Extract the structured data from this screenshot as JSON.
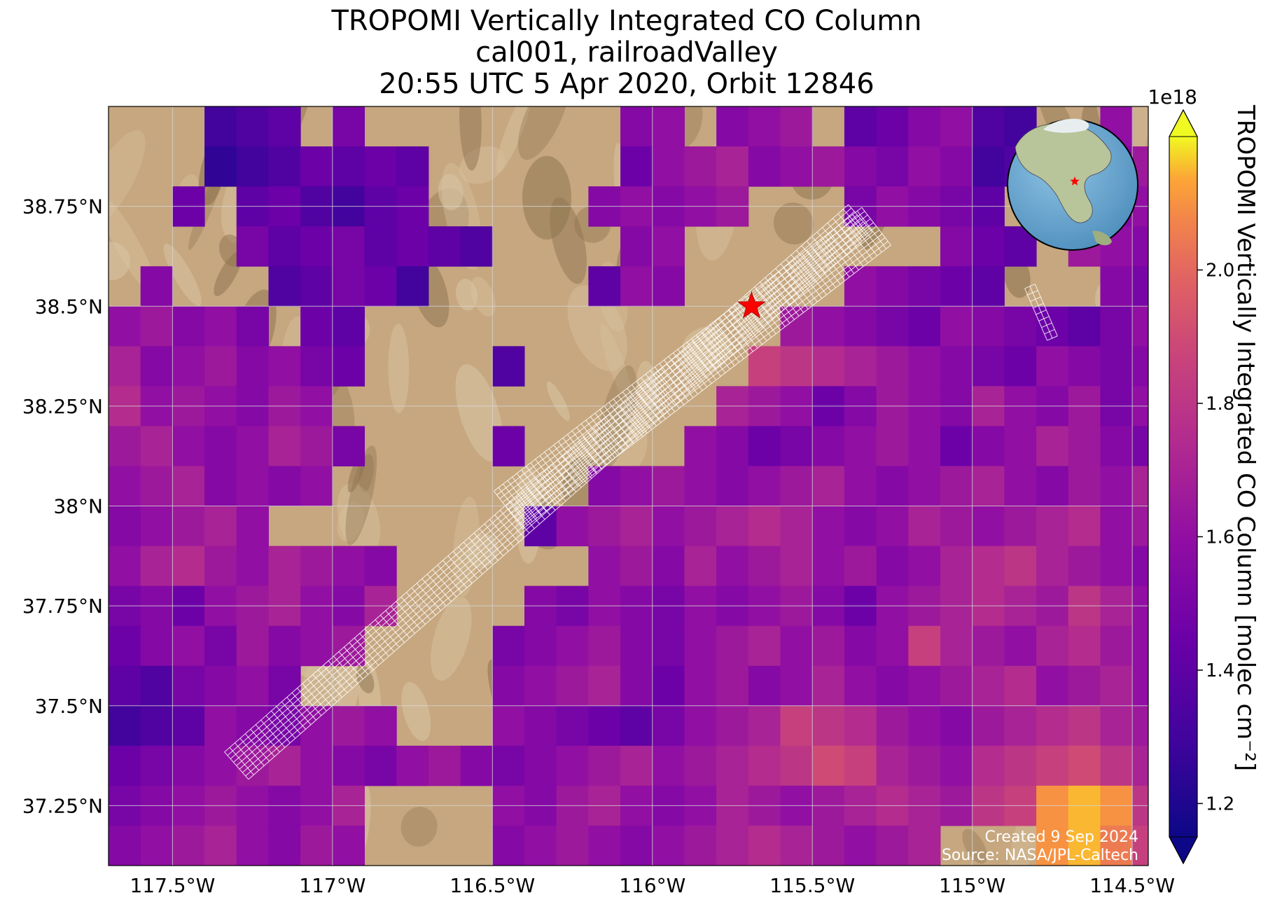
{
  "chart_data": {
    "type": "heatmap",
    "title_lines": [
      "TROPOMI Vertically Integrated CO Column",
      "cal001, railroadValley",
      "20:55 UTC 5 Apr 2020, Orbit 12846"
    ],
    "xlabel": "",
    "ylabel": "",
    "xlim": [
      -117.7,
      -114.45
    ],
    "ylim": [
      37.1,
      39.0
    ],
    "x_ticks": [
      -117.5,
      -117.0,
      -116.5,
      -116.0,
      -115.5,
      -115.0,
      -114.5
    ],
    "x_tick_labels": [
      "117.5°W",
      "117°W",
      "116.5°W",
      "116°W",
      "115.5°W",
      "115°W",
      "114.5°W"
    ],
    "y_ticks": [
      37.25,
      37.5,
      37.75,
      38.0,
      38.25,
      38.5,
      38.75
    ],
    "y_tick_labels": [
      "37.25°N",
      "37.5°N",
      "37.75°N",
      "38°N",
      "38.25°N",
      "38.5°N",
      "38.75°N"
    ],
    "grid": true,
    "colorbar": {
      "label": "TROPOMI Vertically Integrated CO Column [molec cm⁻²]",
      "exponent_label": "1e18",
      "range": [
        1.15,
        2.2
      ],
      "ticks": [
        1.2,
        1.4,
        1.6,
        1.8,
        2.0
      ],
      "tick_labels": [
        "1.2",
        "1.4",
        "1.6",
        "1.8",
        "2.0"
      ],
      "colormap": "plasma",
      "extend": "both"
    },
    "site_marker": {
      "lon": -115.69,
      "lat": 38.5,
      "symbol": "star",
      "color": "#ff0000"
    },
    "cell_size_deg": [
      0.1,
      0.1
    ],
    "cell_columns_lon": [
      -117.7,
      -117.6,
      -117.5,
      -117.4,
      -117.3,
      -117.2,
      -117.1,
      -117.0,
      -116.9,
      -116.8,
      -116.7,
      -116.6,
      -116.5,
      -116.4,
      -116.3,
      -116.2,
      -116.1,
      -116.0,
      -115.9,
      -115.8,
      -115.7,
      -115.6,
      -115.5,
      -115.4,
      -115.3,
      -115.2,
      -115.1,
      -115.0,
      -114.9,
      -114.8,
      -114.7,
      -114.6,
      -114.5
    ],
    "cell_rows_lat": [
      38.9,
      38.8,
      38.7,
      38.6,
      38.5,
      38.4,
      38.3,
      38.2,
      38.1,
      38.0,
      37.9,
      37.8,
      37.7,
      37.6,
      37.5,
      37.4,
      37.3,
      37.2,
      37.1
    ],
    "co_column_1e18": [
      [
        0,
        0,
        0,
        1.3,
        1.35,
        1.4,
        0,
        1.5,
        0,
        0,
        0,
        0,
        0,
        0,
        0,
        0,
        1.55,
        1.6,
        0,
        1.55,
        1.6,
        1.65,
        0,
        1.4,
        1.45,
        1.55,
        1.6,
        1.35,
        1.3,
        0,
        0,
        1.6,
        0
      ],
      [
        0,
        0,
        0,
        1.25,
        1.3,
        1.35,
        1.45,
        1.4,
        1.45,
        1.4,
        0,
        0,
        0,
        0,
        0,
        0,
        1.45,
        1.6,
        1.65,
        1.7,
        1.55,
        1.6,
        1.65,
        1.55,
        1.5,
        1.6,
        1.55,
        1.3,
        1.35,
        0,
        0,
        1.55,
        1.65
      ],
      [
        0,
        0,
        1.45,
        0,
        1.4,
        1.45,
        1.35,
        1.3,
        1.4,
        1.45,
        0,
        0,
        0,
        0,
        0,
        1.55,
        1.6,
        1.55,
        1.6,
        1.65,
        0,
        0,
        0,
        1.5,
        1.6,
        1.55,
        1.5,
        1.4,
        0,
        0,
        1.6,
        1.55,
        1.6
      ],
      [
        0,
        0,
        0,
        0,
        1.5,
        1.4,
        1.45,
        1.5,
        1.4,
        1.45,
        1.4,
        1.35,
        0,
        0,
        0,
        0,
        1.55,
        1.6,
        0,
        0,
        0,
        0,
        0,
        0,
        0,
        0,
        1.55,
        1.45,
        1.4,
        0,
        1.65,
        1.6,
        1.55
      ],
      [
        0,
        1.55,
        0,
        0,
        0,
        1.35,
        1.4,
        1.5,
        1.45,
        1.3,
        0,
        0,
        0,
        0,
        0,
        1.4,
        1.6,
        1.55,
        0,
        0,
        0,
        0,
        0,
        1.6,
        1.55,
        1.5,
        1.45,
        1.4,
        0,
        0,
        0,
        1.55,
        1.5
      ],
      [
        1.6,
        1.65,
        1.55,
        1.6,
        1.5,
        0,
        1.45,
        1.4,
        0,
        0,
        0,
        0,
        0,
        0,
        0,
        0,
        0,
        0,
        0,
        0,
        0,
        1.65,
        1.6,
        1.55,
        1.5,
        1.45,
        1.6,
        1.55,
        1.5,
        1.45,
        1.4,
        1.5,
        1.6
      ],
      [
        1.7,
        1.55,
        1.6,
        1.65,
        1.55,
        1.6,
        1.5,
        1.45,
        0,
        0,
        0,
        0,
        1.35,
        0,
        0,
        0,
        0,
        0,
        0,
        0,
        1.85,
        1.8,
        1.75,
        1.7,
        1.65,
        1.6,
        1.55,
        1.5,
        1.45,
        1.6,
        1.55,
        1.5,
        1.55
      ],
      [
        1.75,
        1.6,
        1.65,
        1.6,
        1.55,
        1.65,
        1.6,
        0,
        0,
        0,
        0,
        0,
        0,
        0,
        0,
        0,
        0,
        0,
        0,
        1.7,
        1.65,
        1.6,
        1.45,
        1.55,
        1.65,
        1.6,
        1.55,
        1.7,
        1.6,
        1.55,
        1.65,
        1.5,
        1.6
      ],
      [
        1.65,
        1.7,
        1.6,
        1.55,
        1.6,
        1.7,
        1.65,
        1.5,
        0,
        0,
        0,
        0,
        1.45,
        0,
        0,
        0,
        0,
        0,
        1.6,
        1.55,
        1.45,
        1.5,
        1.55,
        1.6,
        1.65,
        1.6,
        1.45,
        1.55,
        1.6,
        1.7,
        1.65,
        1.55,
        1.5
      ],
      [
        1.6,
        1.65,
        1.7,
        1.55,
        1.6,
        1.55,
        1.6,
        0,
        0,
        0,
        0,
        0,
        0,
        0,
        0,
        1.55,
        1.6,
        1.65,
        1.6,
        1.55,
        1.6,
        1.65,
        1.7,
        1.6,
        1.55,
        1.6,
        1.65,
        1.7,
        1.6,
        1.55,
        1.65,
        1.6,
        1.7
      ],
      [
        1.55,
        1.6,
        1.65,
        1.7,
        1.6,
        0,
        0,
        0,
        0,
        0,
        0,
        0,
        0,
        1.4,
        1.6,
        1.65,
        1.7,
        1.6,
        1.65,
        1.7,
        1.75,
        1.7,
        1.6,
        1.55,
        1.6,
        1.7,
        1.65,
        1.6,
        1.65,
        1.7,
        1.75,
        1.6,
        1.65
      ],
      [
        1.6,
        1.7,
        1.75,
        1.65,
        1.6,
        1.7,
        1.65,
        1.6,
        1.55,
        0,
        0,
        0,
        0,
        0,
        0,
        1.6,
        1.65,
        1.55,
        1.7,
        1.6,
        1.65,
        1.7,
        1.6,
        1.65,
        1.55,
        1.6,
        1.7,
        1.75,
        1.8,
        1.7,
        1.65,
        1.6,
        1.55
      ],
      [
        1.5,
        1.55,
        1.45,
        1.6,
        1.65,
        1.7,
        1.6,
        1.55,
        1.7,
        0,
        0,
        0,
        0,
        1.55,
        1.5,
        1.6,
        1.55,
        1.5,
        1.6,
        1.55,
        1.6,
        1.65,
        1.55,
        1.45,
        1.6,
        1.65,
        1.7,
        1.75,
        1.7,
        1.65,
        1.8,
        1.7,
        1.6
      ],
      [
        1.45,
        1.55,
        1.6,
        1.5,
        1.65,
        1.55,
        1.6,
        1.65,
        0,
        0,
        0,
        0,
        1.5,
        1.55,
        1.6,
        1.65,
        1.55,
        1.5,
        1.6,
        1.65,
        1.7,
        1.6,
        1.65,
        1.55,
        1.6,
        1.85,
        1.7,
        1.65,
        1.6,
        1.7,
        1.75,
        1.65,
        1.6
      ],
      [
        1.4,
        1.35,
        1.5,
        1.55,
        1.6,
        1.5,
        0,
        0,
        0,
        0,
        0,
        0,
        1.55,
        1.6,
        1.65,
        1.7,
        1.55,
        1.45,
        1.6,
        1.65,
        1.55,
        1.6,
        1.7,
        1.6,
        1.55,
        1.6,
        1.65,
        1.7,
        1.75,
        1.6,
        1.65,
        1.7,
        1.6
      ],
      [
        1.3,
        1.35,
        1.4,
        1.6,
        1.55,
        1.5,
        1.6,
        1.65,
        1.6,
        0,
        0,
        0,
        1.6,
        1.55,
        1.5,
        1.45,
        1.4,
        1.5,
        1.6,
        1.65,
        1.7,
        1.85,
        1.8,
        1.75,
        1.65,
        1.6,
        1.55,
        1.65,
        1.7,
        1.75,
        1.8,
        1.7,
        1.65
      ],
      [
        1.45,
        1.5,
        1.55,
        1.6,
        1.65,
        1.7,
        1.6,
        1.55,
        1.5,
        1.6,
        1.65,
        1.55,
        1.5,
        1.55,
        1.6,
        1.65,
        1.7,
        1.6,
        1.65,
        1.7,
        1.75,
        1.8,
        1.9,
        1.85,
        1.7,
        1.65,
        1.6,
        1.75,
        1.8,
        1.85,
        1.9,
        1.8,
        1.7
      ],
      [
        1.5,
        1.55,
        1.6,
        1.65,
        1.6,
        1.55,
        1.6,
        1.7,
        0,
        0,
        0,
        0,
        1.6,
        1.55,
        1.65,
        1.7,
        1.6,
        1.55,
        1.6,
        1.7,
        1.65,
        1.6,
        1.65,
        1.7,
        1.75,
        1.7,
        1.65,
        1.8,
        1.85,
        2.1,
        2.15,
        2.1,
        1.8
      ],
      [
        1.55,
        1.6,
        1.65,
        1.7,
        1.6,
        1.55,
        1.65,
        1.6,
        0,
        0,
        0,
        0,
        1.55,
        1.6,
        1.65,
        1.6,
        1.55,
        1.6,
        1.65,
        1.7,
        1.75,
        1.7,
        1.65,
        1.6,
        1.65,
        1.7,
        0,
        0,
        0,
        2.1,
        2.15,
        2.05,
        1.85
      ]
    ]
  },
  "credit": {
    "created": "Created 9 Sep 2024",
    "source": "Source: NASA/JPL-Caltech"
  },
  "colors": {
    "land_base": "#c6a77f",
    "land_dark": "#8d7350",
    "grid": "#d8d8d8",
    "footprint_outline": "#ffffff",
    "globe_ocean": "#6aa8d2",
    "globe_land": "#bcc7a0"
  }
}
